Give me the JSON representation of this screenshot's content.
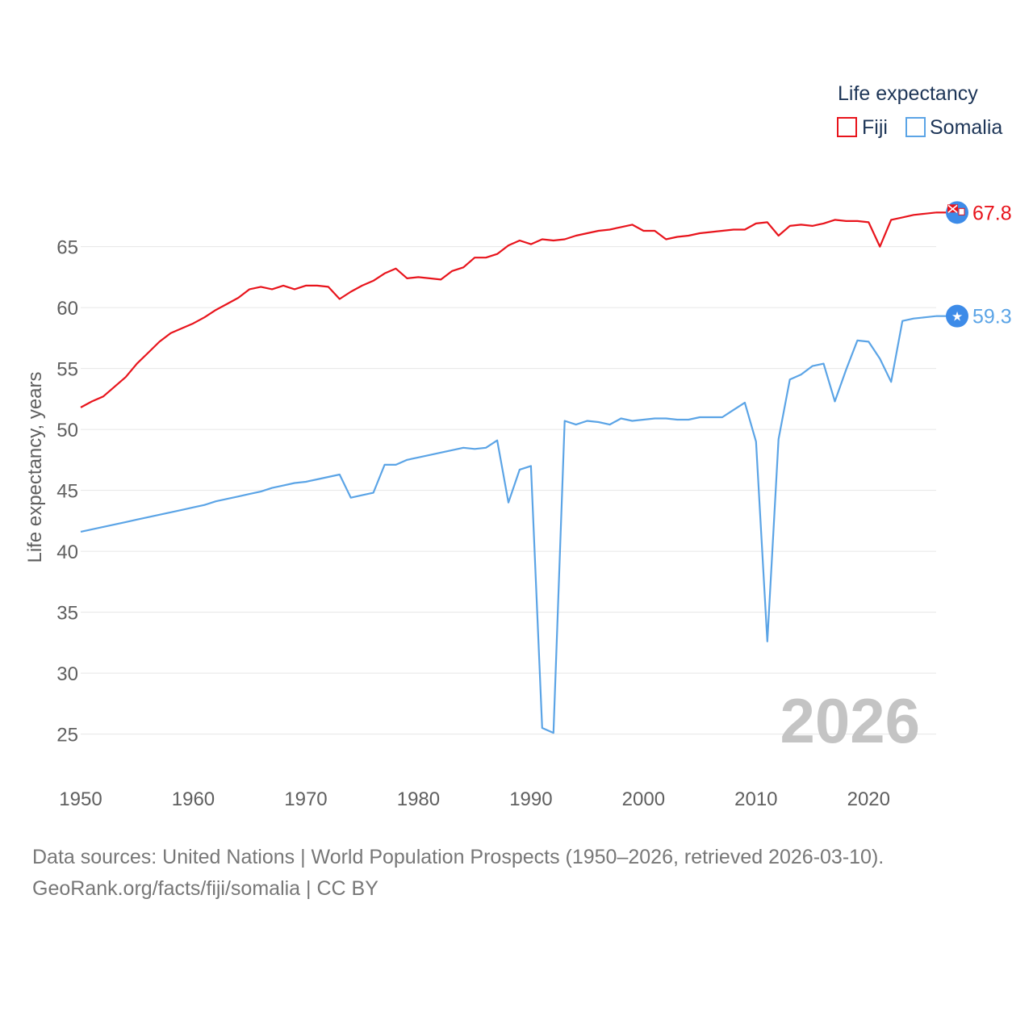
{
  "chart_data": {
    "type": "line",
    "legend_title": "Life expectancy",
    "ylabel": "Life expectancy, years",
    "xlabel": "",
    "xlim": [
      1950,
      2026
    ],
    "ylim": [
      21,
      71
    ],
    "x_ticks": [
      1950,
      1960,
      1970,
      1980,
      1990,
      2000,
      2010,
      2020
    ],
    "y_ticks": [
      25,
      30,
      35,
      40,
      45,
      50,
      55,
      60,
      65
    ],
    "current_year": "2026",
    "legend_placement": "top-right",
    "series": [
      {
        "name": "Fiji",
        "color": "#e8141c",
        "end_label": "67.8",
        "marker_icon": "fiji-flag-icon",
        "x": [
          1950,
          1951,
          1952,
          1953,
          1954,
          1955,
          1956,
          1957,
          1958,
          1959,
          1960,
          1961,
          1962,
          1963,
          1964,
          1965,
          1966,
          1967,
          1968,
          1969,
          1970,
          1971,
          1972,
          1973,
          1974,
          1975,
          1976,
          1977,
          1978,
          1979,
          1980,
          1981,
          1982,
          1983,
          1984,
          1985,
          1986,
          1987,
          1988,
          1989,
          1990,
          1991,
          1992,
          1993,
          1994,
          1995,
          1996,
          1997,
          1998,
          1999,
          2000,
          2001,
          2002,
          2003,
          2004,
          2005,
          2006,
          2007,
          2008,
          2009,
          2010,
          2011,
          2012,
          2013,
          2014,
          2015,
          2016,
          2017,
          2018,
          2019,
          2020,
          2021,
          2022,
          2023,
          2024,
          2025,
          2026
        ],
        "values": [
          51.8,
          52.3,
          52.7,
          53.5,
          54.3,
          55.4,
          56.3,
          57.2,
          57.9,
          58.3,
          58.7,
          59.2,
          59.8,
          60.3,
          60.8,
          61.5,
          61.7,
          61.5,
          61.8,
          61.5,
          61.8,
          61.8,
          61.7,
          60.7,
          61.3,
          61.8,
          62.2,
          62.8,
          63.2,
          62.4,
          62.5,
          62.4,
          62.3,
          63.0,
          63.3,
          64.1,
          64.1,
          64.4,
          65.1,
          65.5,
          65.2,
          65.6,
          65.5,
          65.6,
          65.9,
          66.1,
          66.3,
          66.4,
          66.6,
          66.8,
          66.3,
          66.3,
          65.6,
          65.8,
          65.9,
          66.1,
          66.2,
          66.3,
          66.4,
          66.4,
          66.9,
          67.0,
          65.9,
          66.7,
          66.8,
          66.7,
          66.9,
          67.2,
          67.1,
          67.1,
          67.0,
          65.0,
          67.2,
          67.4,
          67.6,
          67.7,
          67.8
        ]
      },
      {
        "name": "Somalia",
        "color": "#5ba4e6",
        "end_label": "59.3",
        "marker_icon": "somalia-flag-icon",
        "x": [
          1950,
          1951,
          1952,
          1953,
          1954,
          1955,
          1956,
          1957,
          1958,
          1959,
          1960,
          1961,
          1962,
          1963,
          1964,
          1965,
          1966,
          1967,
          1968,
          1969,
          1970,
          1971,
          1972,
          1973,
          1974,
          1975,
          1976,
          1977,
          1978,
          1979,
          1980,
          1981,
          1982,
          1983,
          1984,
          1985,
          1986,
          1987,
          1988,
          1989,
          1990,
          1991,
          1992,
          1993,
          1994,
          1995,
          1996,
          1997,
          1998,
          1999,
          2000,
          2001,
          2002,
          2003,
          2004,
          2005,
          2006,
          2007,
          2008,
          2009,
          2010,
          2011,
          2012,
          2013,
          2014,
          2015,
          2016,
          2017,
          2018,
          2019,
          2020,
          2021,
          2022,
          2023,
          2024,
          2025,
          2026
        ],
        "values": [
          41.6,
          41.8,
          42.0,
          42.2,
          42.4,
          42.6,
          42.8,
          43.0,
          43.2,
          43.4,
          43.6,
          43.8,
          44.1,
          44.3,
          44.5,
          44.7,
          44.9,
          45.2,
          45.4,
          45.6,
          45.7,
          45.9,
          46.1,
          46.3,
          44.4,
          44.6,
          44.8,
          47.1,
          47.1,
          47.5,
          47.7,
          47.9,
          48.1,
          48.3,
          48.5,
          48.4,
          48.5,
          49.1,
          44.0,
          46.7,
          47.0,
          25.5,
          25.1,
          50.7,
          50.4,
          50.7,
          50.6,
          50.4,
          50.9,
          50.7,
          50.8,
          50.9,
          50.9,
          50.8,
          50.8,
          51.0,
          51.0,
          51.0,
          51.6,
          52.2,
          49.0,
          32.6,
          49.2,
          54.1,
          54.5,
          55.2,
          55.4,
          52.3,
          54.9,
          57.3,
          57.2,
          55.8,
          53.9,
          58.9,
          59.1,
          59.2,
          59.3
        ]
      }
    ]
  },
  "footer": {
    "sources": "Data sources: United Nations | World Population Prospects (1950–2026, retrieved 2026-03-10).",
    "credit": "GeoRank.org/facts/fiji/somalia | CC BY"
  }
}
